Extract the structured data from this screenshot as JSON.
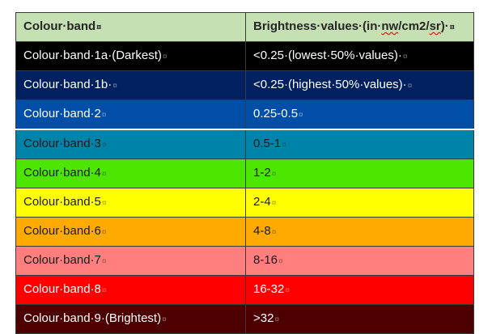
{
  "table": {
    "header": {
      "col1": "Colour·band",
      "col2_pre": "Brightness·values·(in·",
      "col2_unit1": "nw",
      "col2_mid": "/cm2/",
      "col2_unit2": "sr",
      "col2_post": ")·",
      "col1_mark": "¤",
      "col2_mark": "¤",
      "bg": "#c5e0b3",
      "text_color": "#262626"
    },
    "rows": [
      {
        "band": "Colour·band·1a·(Darkest)",
        "value": "<0.25·(lowest·50%·values)·",
        "mark": "¤",
        "bg": "#000000",
        "text_color": "#ffffff"
      },
      {
        "band": "Colour·band·1b·",
        "value": "<0.25·(highest·50%·values)·",
        "mark": "¤",
        "bg": "#002060",
        "text_color": "#ffffff"
      },
      {
        "band": "Colour·band·2",
        "value": "0.25-0.5",
        "mark": "¤",
        "bg": "#004ea8",
        "text_color": "#ffffff"
      },
      {
        "band": "Colour·band·3",
        "value": "0.5-1",
        "mark": "¤",
        "bg": "#0083a8",
        "text_color": "#1a1a1a"
      },
      {
        "band": "Colour·band·4",
        "value": "1-2",
        "mark": "¤",
        "bg": "#4ce600",
        "text_color": "#1a1a1a"
      },
      {
        "band": "Colour·band·5",
        "value": "2-4",
        "mark": "¤",
        "bg": "#ffff00",
        "text_color": "#1a1a1a"
      },
      {
        "band": "Colour·band·6",
        "value": "4-8",
        "mark": "¤",
        "bg": "#ffaa00",
        "text_color": "#1a1a1a"
      },
      {
        "band": "Colour·band·7",
        "value": "8-16",
        "mark": "¤",
        "bg": "#ff7f7f",
        "text_color": "#1a1a1a"
      },
      {
        "band": "Colour·band·8",
        "value": "16-32",
        "mark": "¤",
        "bg": "#ff0000",
        "text_color": "#ffffff"
      },
      {
        "band": "Colour·band·9·(Brightest)",
        "value": ">32",
        "mark": "¤",
        "bg": "#4c0000",
        "text_color": "#ffffff"
      }
    ]
  }
}
